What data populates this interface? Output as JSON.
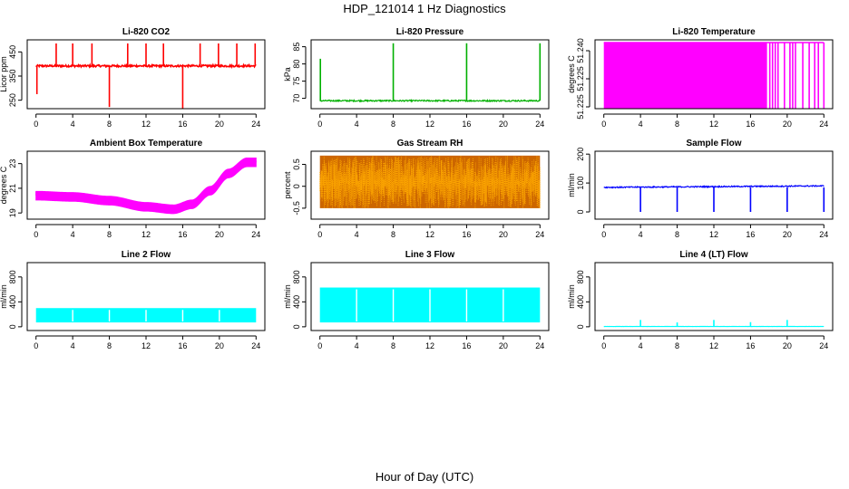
{
  "figure": {
    "title": "HDP_121014 1 Hz Diagnostics",
    "xlabel": "Hour of Day (UTC)"
  },
  "chart_data": [
    {
      "type": "line",
      "title": "Li-820 CO2",
      "ylabel": "Licor ppm",
      "color": "#ff0000",
      "xlim": [
        0,
        24
      ],
      "xticks": [
        0,
        4,
        8,
        12,
        16,
        20,
        24
      ],
      "ylim": [
        215,
        500
      ],
      "yticks": [
        250,
        350,
        450
      ],
      "pattern": "spiky",
      "baseline": 392,
      "noise": 4,
      "spikes_up": [
        {
          "x": 2.2,
          "y": 485
        },
        {
          "x": 4.0,
          "y": 485
        },
        {
          "x": 6.1,
          "y": 485
        },
        {
          "x": 10.0,
          "y": 485
        },
        {
          "x": 12.0,
          "y": 485
        },
        {
          "x": 13.9,
          "y": 485
        },
        {
          "x": 17.9,
          "y": 485
        },
        {
          "x": 19.9,
          "y": 485
        },
        {
          "x": 21.9,
          "y": 485
        },
        {
          "x": 23.9,
          "y": 485
        }
      ],
      "spikes_down": [
        {
          "x": 0.1,
          "y": 275
        },
        {
          "x": 8.0,
          "y": 222
        },
        {
          "x": 16.0,
          "y": 205
        }
      ]
    },
    {
      "type": "line",
      "title": "Li-820 Pressure",
      "ylabel": "kPa",
      "color": "#00b000",
      "xlim": [
        0,
        24
      ],
      "xticks": [
        0,
        4,
        8,
        12,
        16,
        20,
        24
      ],
      "ylim": [
        67,
        87
      ],
      "yticks": [
        70,
        75,
        80,
        85
      ],
      "pattern": "flat",
      "baseline": 69.3,
      "noise": 0.2,
      "spikes_up": [
        {
          "x": 0.05,
          "y": 81.5
        },
        {
          "x": 8.0,
          "y": 86
        },
        {
          "x": 16.0,
          "y": 86
        },
        {
          "x": 24.0,
          "y": 86
        }
      ]
    },
    {
      "type": "area",
      "title": "Li-820 Temperature",
      "ylabel": "degrees C",
      "color": "#ff00ff",
      "xlim": [
        0,
        24
      ],
      "xticks": [
        0,
        4,
        8,
        12,
        16,
        20,
        24
      ],
      "ylim": [
        51.2248,
        51.2256
      ],
      "yticks": [
        "51.225",
        "51.225",
        "51.240"
      ],
      "pattern": "filled",
      "filled_until": 17.8,
      "gap_lines": [
        18.1,
        18.4,
        18.7,
        19.0,
        19.7,
        20.3,
        20.6,
        20.9,
        21.7,
        22.4,
        23.0,
        23.4
      ]
    },
    {
      "type": "line",
      "title": "Ambient Box Temperature",
      "ylabel": "degrees C",
      "color": "#ff00ff",
      "xlim": [
        0,
        24
      ],
      "xticks": [
        0,
        4,
        8,
        12,
        16,
        20,
        24
      ],
      "ylim": [
        18.5,
        24
      ],
      "yticks": [
        19,
        21,
        23
      ],
      "pattern": "band",
      "band": 0.7,
      "curve": [
        {
          "x": 0,
          "y": 20.4
        },
        {
          "x": 4,
          "y": 20.3
        },
        {
          "x": 8,
          "y": 20.0
        },
        {
          "x": 12,
          "y": 19.5
        },
        {
          "x": 15,
          "y": 19.3
        },
        {
          "x": 17,
          "y": 19.7
        },
        {
          "x": 19,
          "y": 20.8
        },
        {
          "x": 21,
          "y": 22.2
        },
        {
          "x": 23,
          "y": 23.1
        },
        {
          "x": 24,
          "y": 23.1
        }
      ]
    },
    {
      "type": "line",
      "title": "Gas Stream RH",
      "ylabel": "percent",
      "color": "#ffaa00",
      "color2": "#cc6600",
      "xlim": [
        0,
        24
      ],
      "xticks": [
        0,
        4,
        8,
        12,
        16,
        20,
        24
      ],
      "ylim": [
        -0.75,
        0.8
      ],
      "yticks": [
        -0.5,
        0.0,
        0.5
      ],
      "pattern": "noise",
      "low": -0.5,
      "high": 0.7
    },
    {
      "type": "line",
      "title": "Sample Flow",
      "ylabel": "ml/min",
      "color": "#0000ff",
      "xlim": [
        0,
        24
      ],
      "xticks": [
        0,
        4,
        8,
        12,
        16,
        20,
        24
      ],
      "ylim": [
        -25,
        210
      ],
      "yticks": [
        0,
        100,
        200
      ],
      "pattern": "flat",
      "baseline": 85,
      "noise": 2,
      "drift": 5,
      "spikes_down": [
        {
          "x": 4.0,
          "y": 0
        },
        {
          "x": 8.0,
          "y": 0
        },
        {
          "x": 12.0,
          "y": 0
        },
        {
          "x": 16.0,
          "y": 0
        },
        {
          "x": 20.0,
          "y": 0
        },
        {
          "x": 24.0,
          "y": 0
        }
      ]
    },
    {
      "type": "area",
      "title": "Line 2 Flow",
      "ylabel": "ml/min",
      "color": "#00ffff",
      "xlim": [
        0,
        24
      ],
      "xticks": [
        0,
        4,
        8,
        12,
        16,
        20,
        24
      ],
      "ylim": [
        -60,
        1030
      ],
      "yticks": [
        0,
        400,
        800
      ],
      "pattern": "block",
      "low": 70,
      "high": 300,
      "xstart": 0,
      "xend": 24,
      "gaps": [
        4,
        8,
        12,
        16,
        20
      ]
    },
    {
      "type": "area",
      "title": "Line 3 Flow",
      "ylabel": "ml/min",
      "color": "#00ffff",
      "xlim": [
        0,
        24
      ],
      "xticks": [
        0,
        4,
        8,
        12,
        16,
        20,
        24
      ],
      "ylim": [
        -60,
        1030
      ],
      "yticks": [
        0,
        400,
        800
      ],
      "pattern": "block",
      "low": 70,
      "high": 630,
      "xstart": 0,
      "xend": 24,
      "gaps": [
        4,
        8,
        12,
        16,
        20
      ]
    },
    {
      "type": "line",
      "title": "Line 4 (LT) Flow",
      "ylabel": "ml/min",
      "color": "#00ffff",
      "xlim": [
        0,
        24
      ],
      "xticks": [
        0,
        4,
        8,
        12,
        16,
        20,
        24
      ],
      "ylim": [
        -60,
        1030
      ],
      "yticks": [
        0,
        400,
        800
      ],
      "pattern": "flat",
      "baseline": 5,
      "noise": 1,
      "spikes_up": [
        {
          "x": 4.0,
          "y": 110
        },
        {
          "x": 8.0,
          "y": 70
        },
        {
          "x": 12.0,
          "y": 110
        },
        {
          "x": 16.0,
          "y": 75
        },
        {
          "x": 20.0,
          "y": 110
        }
      ]
    }
  ]
}
